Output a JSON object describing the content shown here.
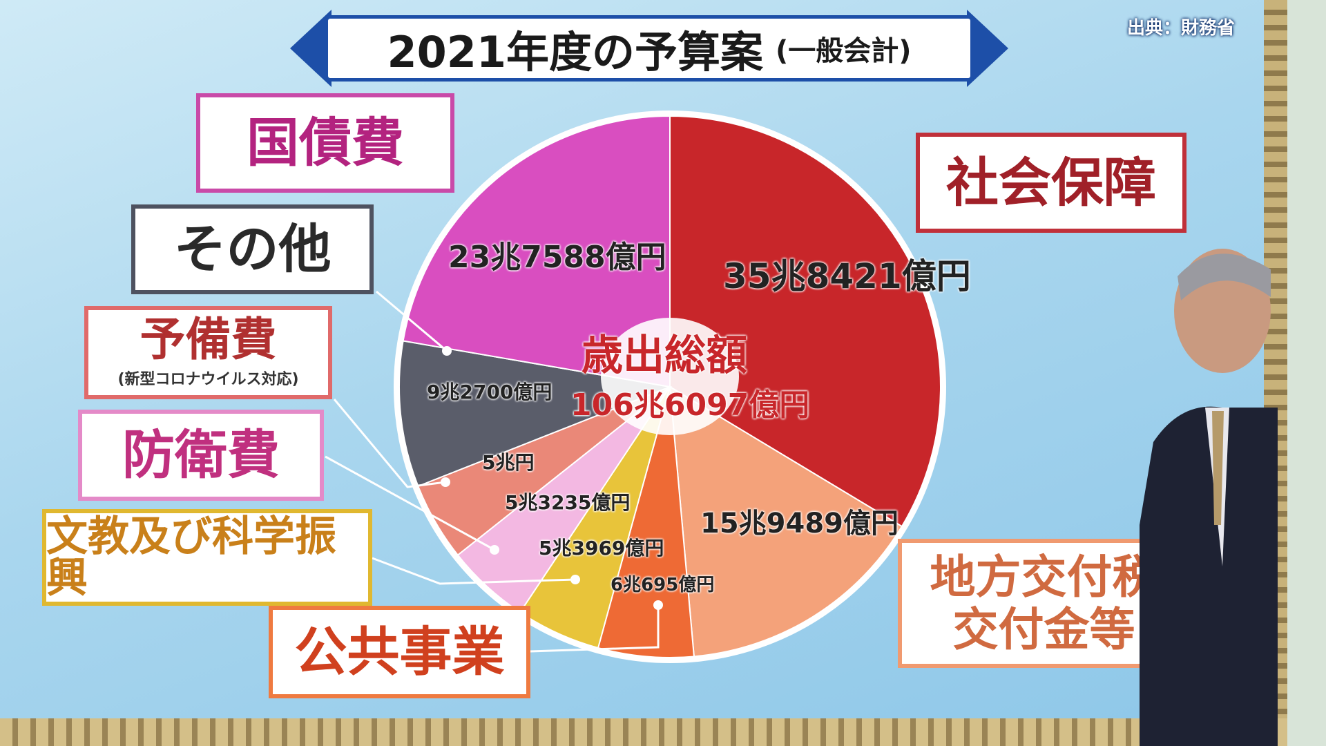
{
  "title": {
    "main": "2021年度の予算案",
    "sub": "(一般会計)"
  },
  "source": "出典：財務省",
  "center": {
    "label": "歳出総額",
    "total": "106兆6097億円"
  },
  "chart_data": {
    "type": "pie",
    "title": "2021年度の予算案 (一般会計)",
    "unit": "億円",
    "total": 1066097,
    "slices": [
      {
        "name": "社会保障",
        "value": 358421,
        "label": "35兆8421億円",
        "color": "#c8262a"
      },
      {
        "name": "地方交付税交付金等",
        "value": 159489,
        "label": "15兆9489億円",
        "color": "#f4a27a"
      },
      {
        "name": "公共事業",
        "value": 60695,
        "label": "6兆695億円",
        "color": "#ee6a35"
      },
      {
        "name": "文教及び科学振興",
        "value": 53969,
        "label": "5兆3969億円",
        "color": "#e8c43a"
      },
      {
        "name": "防衛費",
        "value": 53235,
        "label": "5兆3235億円",
        "color": "#f3b8e2"
      },
      {
        "name": "予備費",
        "sub": "(新型コロナウイルス対応)",
        "value": 50000,
        "label": "5兆円",
        "color": "#ea8878"
      },
      {
        "name": "その他",
        "value": 92700,
        "label": "9兆2700億円",
        "color": "#5a5d6a"
      },
      {
        "name": "国債費",
        "value": 237588,
        "label": "23兆7588億円",
        "color": "#d94ec0"
      }
    ]
  }
}
